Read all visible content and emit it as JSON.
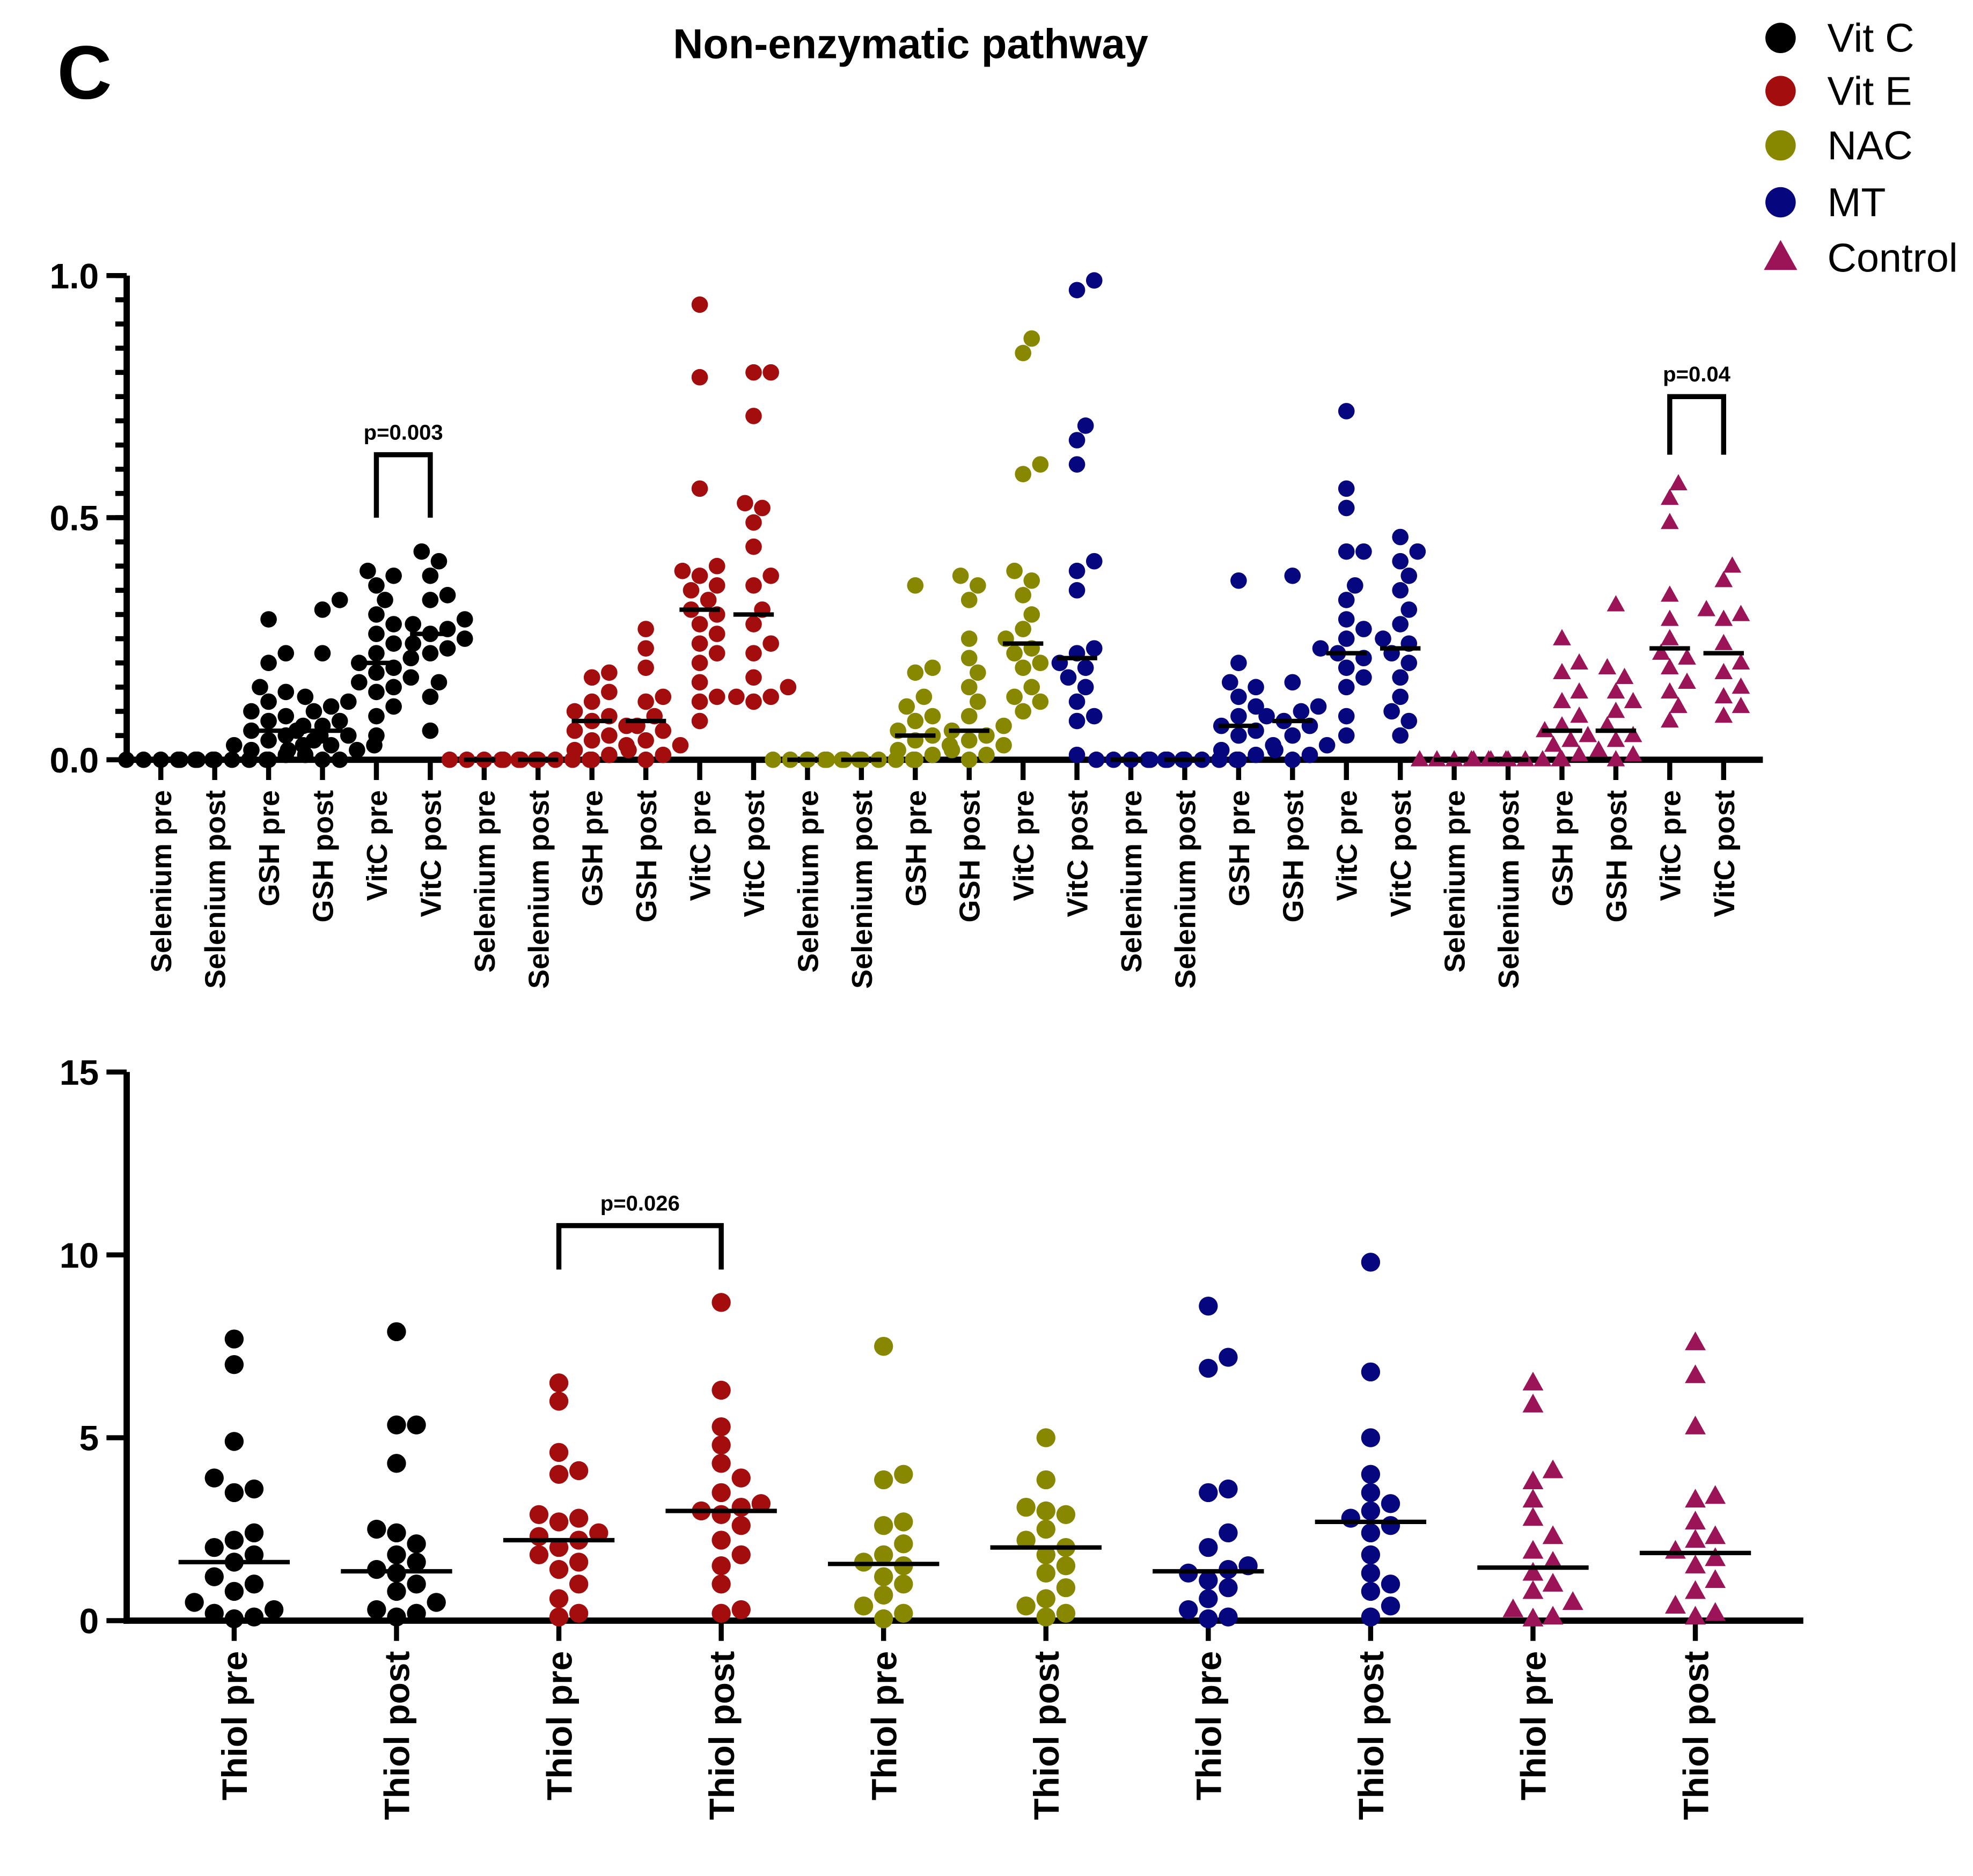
{
  "panel_label": "C",
  "title": "Non-enzymatic pathway",
  "legend": [
    {
      "label": "Vit C",
      "color": "#000000",
      "marker": "circle"
    },
    {
      "label": "Vit E",
      "color": "#a30d0d",
      "marker": "circle"
    },
    {
      "label": "NAC",
      "color": "#878700",
      "marker": "circle"
    },
    {
      "label": "MT",
      "color": "#06067e",
      "marker": "circle"
    },
    {
      "label": "Control",
      "color": "#9a1457",
      "marker": "triangle"
    }
  ],
  "chart_data": [
    {
      "type": "scatter",
      "subtype": "dot-plot-with-median",
      "ylim": [
        0,
        1.0
      ],
      "yticks": [
        "0.0",
        "0.5",
        "1.0"
      ],
      "yvals": [
        0,
        0.5,
        1.0
      ],
      "minor_tick_step": 0.05,
      "annotations": [
        {
          "text": "p=0.003",
          "from": 4,
          "to": 5,
          "bracket_top": 0.63,
          "bracket_bottom": 0.5
        },
        {
          "text": "p=0.04",
          "from": 28,
          "to": 29,
          "bracket_top": 0.75,
          "bracket_bottom": 0.63
        }
      ],
      "series": [
        {
          "name": "Selenium pre",
          "group": 0,
          "median": 0,
          "values": [
            0,
            0,
            0,
            0,
            0,
            0
          ]
        },
        {
          "name": "Selenium post",
          "group": 0,
          "median": 0,
          "values": [
            0,
            0,
            0,
            0,
            0,
            0
          ]
        },
        {
          "name": "GSH pre",
          "group": 0,
          "median": 0.06,
          "values": [
            0.29,
            0.22,
            0.2,
            0.15,
            0.14,
            0.12,
            0.1,
            0.09,
            0.08,
            0.07,
            0.06,
            0.05,
            0.05,
            0.04,
            0.03,
            0.03,
            0.02,
            0.01,
            0
          ]
        },
        {
          "name": "GSH post",
          "group": 0,
          "median": 0.06,
          "values": [
            0.33,
            0.31,
            0.22,
            0.13,
            0.12,
            0.11,
            0.1,
            0.08,
            0.07,
            0.06,
            0.05,
            0.04,
            0.03,
            0.03,
            0.02,
            0.02,
            0.01,
            0,
            0
          ]
        },
        {
          "name": "VitC pre",
          "group": 0,
          "median": 0.2,
          "values": [
            0.39,
            0.38,
            0.36,
            0.33,
            0.3,
            0.28,
            0.26,
            0.24,
            0.22,
            0.21,
            0.2,
            0.19,
            0.18,
            0.17,
            0.16,
            0.15,
            0.14,
            0.11,
            0.09,
            0.05
          ]
        },
        {
          "name": "VitC post",
          "group": 0,
          "median": 0.26,
          "values": [
            0.43,
            0.41,
            0.38,
            0.34,
            0.33,
            0.29,
            0.28,
            0.27,
            0.26,
            0.25,
            0.24,
            0.23,
            0.22,
            0.16,
            0.13,
            0.06
          ]
        },
        {
          "name": "Selenium pre",
          "group": 1,
          "median": 0,
          "values": [
            0,
            0,
            0,
            0,
            0,
            0
          ]
        },
        {
          "name": "Selenium post",
          "group": 1,
          "median": 0,
          "values": [
            0,
            0,
            0,
            0,
            0,
            0
          ]
        },
        {
          "name": "GSH pre",
          "group": 1,
          "median": 0.08,
          "values": [
            0.18,
            0.17,
            0.14,
            0.12,
            0.1,
            0.09,
            0.08,
            0.07,
            0.06,
            0.05,
            0.04,
            0.03,
            0.02,
            0.01,
            0
          ]
        },
        {
          "name": "GSH post",
          "group": 1,
          "median": 0.08,
          "values": [
            0.27,
            0.23,
            0.19,
            0.13,
            0.12,
            0.09,
            0.07,
            0.06,
            0.04,
            0.03,
            0.02,
            0.01,
            0
          ]
        },
        {
          "name": "VitC pre",
          "group": 1,
          "median": 0.31,
          "values": [
            0.94,
            0.79,
            0.56,
            0.4,
            0.39,
            0.38,
            0.36,
            0.35,
            0.33,
            0.31,
            0.3,
            0.28,
            0.26,
            0.24,
            0.22,
            0.2,
            0.16,
            0.13,
            0.12,
            0.08
          ]
        },
        {
          "name": "VitC post",
          "group": 1,
          "median": 0.3,
          "values": [
            0.8,
            0.8,
            0.71,
            0.53,
            0.52,
            0.49,
            0.44,
            0.38,
            0.36,
            0.31,
            0.28,
            0.24,
            0.22,
            0.17,
            0.15,
            0.13,
            0.13,
            0.12
          ]
        },
        {
          "name": "Selenium pre",
          "group": 2,
          "median": 0,
          "values": [
            0,
            0,
            0,
            0,
            0,
            0
          ]
        },
        {
          "name": "Selenium post",
          "group": 2,
          "median": 0,
          "values": [
            0,
            0,
            0,
            0,
            0,
            0
          ]
        },
        {
          "name": "GSH pre",
          "group": 2,
          "median": 0.05,
          "values": [
            0.36,
            0.19,
            0.18,
            0.13,
            0.11,
            0.09,
            0.08,
            0.06,
            0.05,
            0.04,
            0.03,
            0.02,
            0.01,
            0
          ]
        },
        {
          "name": "GSH post",
          "group": 2,
          "median": 0.06,
          "values": [
            0.38,
            0.36,
            0.33,
            0.25,
            0.21,
            0.18,
            0.15,
            0.12,
            0.09,
            0.07,
            0.06,
            0.05,
            0.04,
            0.03,
            0.02,
            0.01,
            0
          ]
        },
        {
          "name": "VitC pre",
          "group": 2,
          "median": 0.24,
          "values": [
            0.87,
            0.84,
            0.61,
            0.59,
            0.39,
            0.37,
            0.34,
            0.3,
            0.27,
            0.25,
            0.23,
            0.22,
            0.2,
            0.19,
            0.15,
            0.13,
            0.12,
            0.1
          ]
        },
        {
          "name": "VitC post",
          "group": 3,
          "median": 0.21,
          "values": [
            0.99,
            0.97,
            0.69,
            0.66,
            0.61,
            0.41,
            0.39,
            0.35,
            0.23,
            0.22,
            0.2,
            0.19,
            0.17,
            0.15,
            0.12,
            0.09,
            0.08,
            0.01
          ]
        },
        {
          "name": "Selenium pre",
          "group": 3,
          "median": 0,
          "values": [
            0,
            0,
            0,
            0,
            0,
            0
          ]
        },
        {
          "name": "Selenium post",
          "group": 3,
          "median": 0,
          "values": [
            0,
            0,
            0,
            0,
            0,
            0
          ]
        },
        {
          "name": "GSH pre",
          "group": 3,
          "median": 0.07,
          "values": [
            0.37,
            0.2,
            0.16,
            0.15,
            0.13,
            0.11,
            0.09,
            0.07,
            0.06,
            0.05,
            0.03,
            0.02,
            0.01,
            0
          ]
        },
        {
          "name": "GSH post",
          "group": 3,
          "median": 0.08,
          "values": [
            0.38,
            0.16,
            0.11,
            0.1,
            0.09,
            0.08,
            0.07,
            0.05,
            0.03,
            0.02,
            0.01,
            0
          ]
        },
        {
          "name": "VitC pre",
          "group": 3,
          "median": 0.22,
          "values": [
            0.72,
            0.56,
            0.52,
            0.43,
            0.43,
            0.36,
            0.33,
            0.29,
            0.27,
            0.25,
            0.23,
            0.22,
            0.21,
            0.19,
            0.17,
            0.15,
            0.09,
            0.05
          ]
        },
        {
          "name": "VitC post",
          "group": 3,
          "median": 0.23,
          "values": [
            0.46,
            0.43,
            0.41,
            0.38,
            0.35,
            0.31,
            0.28,
            0.25,
            0.24,
            0.22,
            0.2,
            0.17,
            0.13,
            0.1,
            0.08,
            0.05
          ]
        },
        {
          "name": "Selenium pre",
          "group": 4,
          "median": 0,
          "values": [
            0,
            0,
            0,
            0,
            0,
            0
          ]
        },
        {
          "name": "Selenium post",
          "group": 4,
          "median": 0,
          "values": [
            0,
            0,
            0,
            0,
            0,
            0
          ]
        },
        {
          "name": "GSH pre",
          "group": 4,
          "median": 0.06,
          "values": [
            0.25,
            0.2,
            0.18,
            0.14,
            0.12,
            0.09,
            0.07,
            0.06,
            0.05,
            0.04,
            0.03,
            0.01,
            0
          ]
        },
        {
          "name": "GSH post",
          "group": 4,
          "median": 0.06,
          "values": [
            0.32,
            0.19,
            0.17,
            0.14,
            0.12,
            0.1,
            0.07,
            0.05,
            0.04,
            0.02,
            0.01,
            0
          ]
        },
        {
          "name": "VitC pre",
          "group": 4,
          "median": 0.23,
          "values": [
            0.57,
            0.54,
            0.49,
            0.34,
            0.29,
            0.25,
            0.22,
            0.21,
            0.19,
            0.16,
            0.14,
            0.11,
            0.08
          ]
        },
        {
          "name": "VitC post",
          "group": 4,
          "median": 0.22,
          "values": [
            0.4,
            0.37,
            0.31,
            0.3,
            0.29,
            0.24,
            0.2,
            0.18,
            0.15,
            0.13,
            0.11,
            0.09
          ]
        }
      ]
    },
    {
      "type": "scatter",
      "subtype": "dot-plot-with-median",
      "ylim": [
        0,
        15
      ],
      "yticks": [
        "0",
        "5",
        "10",
        "15"
      ],
      "yvals": [
        0,
        5,
        10,
        15
      ],
      "annotations": [
        {
          "text": "p=0.026",
          "from": 2,
          "to": 3,
          "bracket_top": 10.8,
          "bracket_bottom": 9.6
        }
      ],
      "series": [
        {
          "name": "Thiol pre",
          "group": 0,
          "median": 1.6,
          "values": [
            7.7,
            7.0,
            4.9,
            3.9,
            3.6,
            3.5,
            2.4,
            2.2,
            2.0,
            1.8,
            1.6,
            1.2,
            1.0,
            0.8,
            0.5,
            0.3,
            0.2,
            0.1,
            0.05
          ]
        },
        {
          "name": "Thiol post",
          "group": 0,
          "median": 1.35,
          "values": [
            7.9,
            5.35,
            5.35,
            4.3,
            2.5,
            2.4,
            2.1,
            1.8,
            1.6,
            1.4,
            1.3,
            1.0,
            0.8,
            0.5,
            0.3,
            0.2,
            0.1
          ]
        },
        {
          "name": "Thiol pre",
          "group": 1,
          "median": 2.2,
          "values": [
            6.5,
            6.0,
            4.6,
            4.1,
            4.0,
            2.9,
            2.8,
            2.7,
            2.4,
            2.3,
            2.2,
            2.0,
            1.8,
            1.6,
            1.4,
            1.0,
            0.6,
            0.2,
            0.1
          ]
        },
        {
          "name": "Thiol post",
          "group": 1,
          "median": 3.0,
          "values": [
            8.7,
            6.3,
            5.3,
            4.8,
            4.3,
            3.9,
            3.5,
            3.2,
            3.1,
            3.0,
            2.9,
            2.6,
            2.2,
            1.8,
            1.5,
            1.0,
            0.3,
            0.2
          ]
        },
        {
          "name": "Thiol pre",
          "group": 2,
          "median": 1.55,
          "values": [
            7.5,
            4.0,
            3.85,
            2.7,
            2.6,
            2.1,
            1.8,
            1.6,
            1.5,
            1.2,
            1.0,
            0.7,
            0.4,
            0.2,
            0.05
          ]
        },
        {
          "name": "Thiol post",
          "group": 2,
          "median": 2.0,
          "values": [
            5.0,
            3.85,
            3.1,
            3.0,
            2.9,
            2.5,
            2.2,
            2.0,
            1.8,
            1.5,
            1.3,
            0.9,
            0.6,
            0.4,
            0.2,
            0.1
          ]
        },
        {
          "name": "Thiol pre",
          "group": 3,
          "median": 1.35,
          "values": [
            8.6,
            7.2,
            6.9,
            3.6,
            3.5,
            2.4,
            2.0,
            1.5,
            1.4,
            1.3,
            1.1,
            0.9,
            0.6,
            0.3,
            0.1,
            0.05
          ]
        },
        {
          "name": "Thiol post",
          "group": 3,
          "median": 2.7,
          "values": [
            9.8,
            6.8,
            5.0,
            4.0,
            3.5,
            3.2,
            3.0,
            2.8,
            2.6,
            2.4,
            1.8,
            1.3,
            1.0,
            0.8,
            0.4,
            0.1
          ]
        },
        {
          "name": "Thiol pre",
          "group": 4,
          "median": 1.45,
          "values": [
            6.5,
            5.9,
            4.1,
            3.8,
            3.3,
            2.8,
            2.3,
            1.9,
            1.6,
            1.3,
            1.0,
            0.8,
            0.5,
            0.3,
            0.1,
            0.05
          ]
        },
        {
          "name": "Thiol post",
          "group": 4,
          "median": 1.85,
          "values": [
            7.6,
            6.7,
            5.3,
            3.4,
            3.3,
            2.7,
            2.3,
            2.2,
            1.9,
            1.7,
            1.5,
            1.1,
            0.8,
            0.4,
            0.2,
            0.1
          ]
        }
      ]
    }
  ]
}
